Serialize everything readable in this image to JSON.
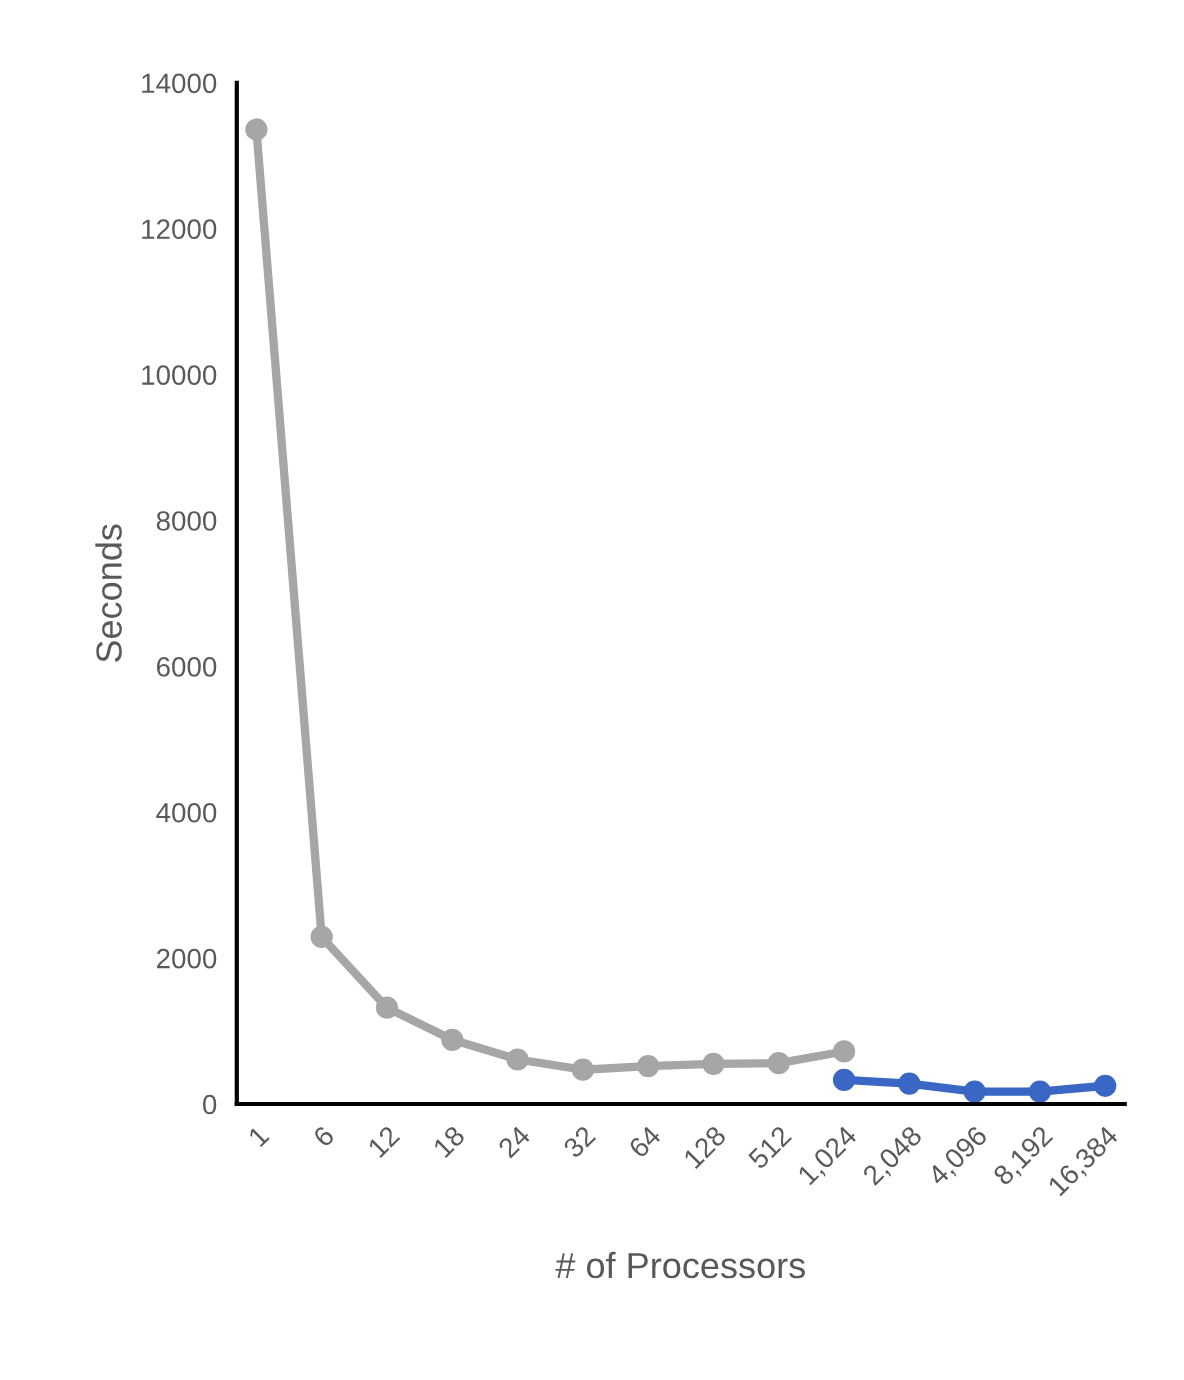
{
  "chart_data": {
    "type": "line",
    "xlabel": "# of Processors",
    "ylabel": "Seconds",
    "categories": [
      "1",
      "6",
      "12",
      "18",
      "24",
      "32",
      "64",
      "128",
      "512",
      "1,024",
      "2,048",
      "4,096",
      "8,192",
      "16,384"
    ],
    "series": [
      {
        "color": "#a6a6a6",
        "values": [
          13360,
          2290,
          1320,
          880,
          610,
          470,
          520,
          550,
          560,
          720,
          null,
          null,
          null,
          null
        ]
      },
      {
        "color": "#3a66c4",
        "values": [
          null,
          null,
          null,
          null,
          null,
          null,
          null,
          null,
          null,
          330,
          280,
          170,
          170,
          250
        ]
      }
    ],
    "ylim": [
      0,
      14000
    ],
    "yticks": [
      0,
      2000,
      4000,
      6000,
      8000,
      10000,
      12000,
      14000
    ],
    "grid": false,
    "marker": "circle",
    "line_style": "solid"
  }
}
